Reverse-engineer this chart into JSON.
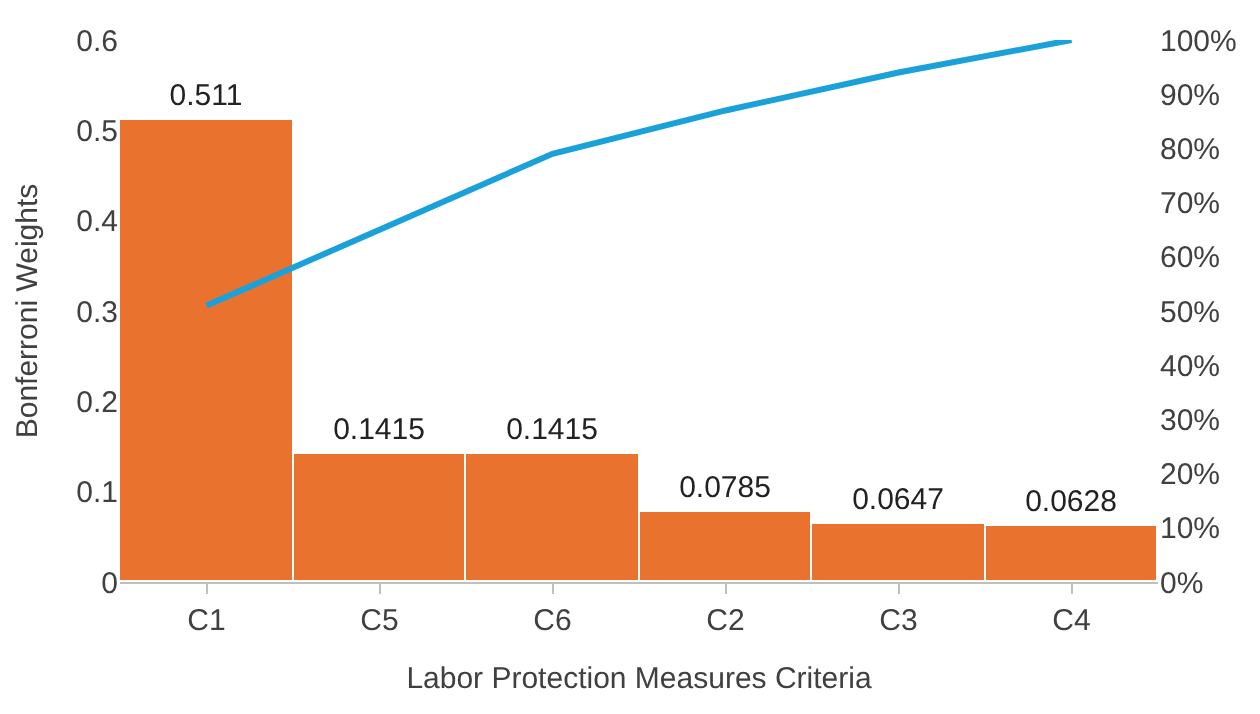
{
  "chart_data": {
    "type": "bar",
    "xlabel": "Labor Protection Measures Criteria",
    "ylabel": "Bonferroni Weights",
    "categories": [
      "C1",
      "C5",
      "C6",
      "C2",
      "C3",
      "C4"
    ],
    "series": [
      {
        "color": "#e9722f",
        "values": [
          0.511,
          0.1415,
          0.1415,
          0.0785,
          0.0647,
          0.0628
        ],
        "data_labels": true
      },
      {
        "type": "line",
        "axis": "y2",
        "color": "#1ba1d9",
        "marker": "none",
        "line_style": "solid",
        "values": [
          51,
          65,
          79,
          87,
          94,
          100
        ]
      }
    ],
    "ylim": [
      0,
      0.6
    ],
    "yticks": [
      0,
      0.1,
      0.2,
      0.3,
      0.4,
      0.5,
      0.6
    ],
    "y2lim": [
      0,
      100
    ],
    "y2ticks": [
      {
        "value": 0,
        "label": "0%"
      },
      {
        "value": 10,
        "label": "10%"
      },
      {
        "value": 20,
        "label": "20%"
      },
      {
        "value": 30,
        "label": "30%"
      },
      {
        "value": 40,
        "label": "40%"
      },
      {
        "value": 50,
        "label": "50%"
      },
      {
        "value": 60,
        "label": "60%"
      },
      {
        "value": 70,
        "label": "70%"
      },
      {
        "value": 80,
        "label": "80%"
      },
      {
        "value": 90,
        "label": "90%"
      },
      {
        "value": 100,
        "label": "100%"
      }
    ],
    "legend": false
  }
}
